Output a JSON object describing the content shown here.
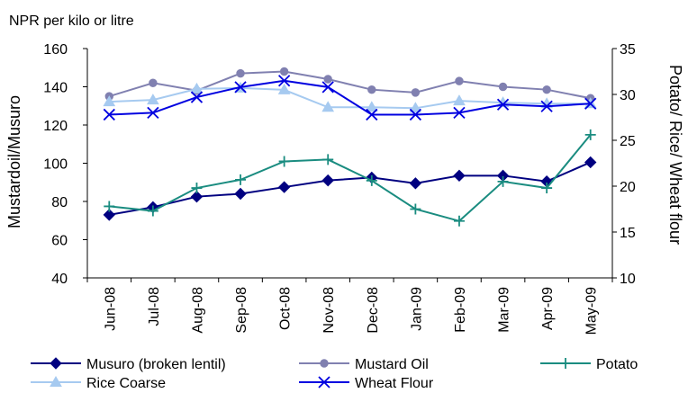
{
  "chart_data": {
    "type": "line",
    "note": "NPR per kilo or litre",
    "ylabel_left": "Mustardoil/Musuro",
    "ylabel_right": "Potato/ Rice/ Wheat flour",
    "categories": [
      "Jun-08",
      "Jul-08",
      "Aug-08",
      "Sep-08",
      "Oct-08",
      "Nov-08",
      "Dec-08",
      "Jan-09",
      "Feb-09",
      "Mar-09",
      "Apr-09",
      "May-09"
    ],
    "ylim_left": [
      40,
      160
    ],
    "yticks_left": [
      40,
      60,
      80,
      100,
      120,
      140,
      160
    ],
    "ylim_right": [
      10,
      35
    ],
    "yticks_right": [
      10,
      15,
      20,
      25,
      30,
      35
    ],
    "grid": false,
    "legend_position": "bottom",
    "series": [
      {
        "name": "Musuro (broken lentil)",
        "axis": "left",
        "color": "#000080",
        "marker": "diamond",
        "values": [
          73,
          77,
          82.5,
          84,
          87.5,
          91,
          92.5,
          89.5,
          93.5,
          93.5,
          90.5,
          100.5
        ]
      },
      {
        "name": "Mustard Oil",
        "axis": "left",
        "color": "#8080b0",
        "marker": "circle",
        "values": [
          135,
          142,
          138,
          147,
          148,
          144,
          138.5,
          137,
          143,
          140,
          138.5,
          134
        ]
      },
      {
        "name": "Potato",
        "axis": "right",
        "color": "#1a8c80",
        "marker": "plus",
        "values": [
          17.8,
          17.3,
          19.8,
          20.7,
          22.7,
          22.9,
          20.6,
          17.5,
          16.2,
          20.5,
          19.8,
          25.6
        ]
      },
      {
        "name": "Rice Coarse",
        "axis": "right",
        "color": "#a6caf0",
        "marker": "triangle",
        "values": [
          29.2,
          29.4,
          30.6,
          30.7,
          30.5,
          28.6,
          28.6,
          28.5,
          29.3,
          29.1,
          29,
          29
        ]
      },
      {
        "name": "Wheat Flour",
        "axis": "right",
        "color": "#0000e0",
        "marker": "x",
        "values": [
          27.8,
          28,
          29.7,
          30.8,
          31.5,
          30.8,
          27.8,
          27.8,
          28,
          28.9,
          28.7,
          29
        ]
      }
    ]
  }
}
